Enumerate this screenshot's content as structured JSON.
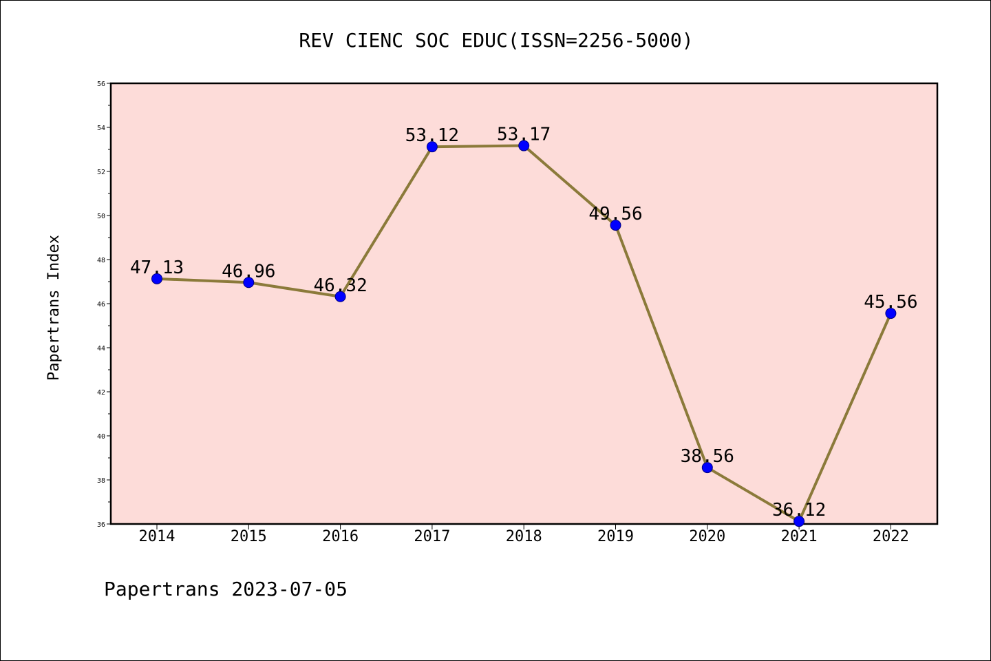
{
  "footer": "Papertrans 2023-07-05",
  "colors": {
    "plot_background": "#fddcd9",
    "line": "#8b7a3a",
    "marker": "#0000ff",
    "axes": "#000000"
  },
  "chart_data": {
    "type": "line",
    "title": "REV CIENC SOC EDUC(ISSN=2256-5000)",
    "xlabel": "",
    "ylabel": "Papertrans Index",
    "categories": [
      "2014",
      "2015",
      "2016",
      "2017",
      "2018",
      "2019",
      "2020",
      "2021",
      "2022"
    ],
    "series": [
      {
        "values": [
          47.13,
          46.96,
          46.32,
          53.12,
          53.17,
          49.56,
          38.56,
          36.12,
          45.56
        ],
        "labels": [
          "47.13",
          "46.96",
          "46.32",
          "53.12",
          "53.17",
          "49.56",
          "38.56",
          "36.12",
          "45.56"
        ]
      }
    ],
    "ylim": [
      36,
      56
    ],
    "yticks": [
      "36",
      "38",
      "40",
      "42",
      "44",
      "46",
      "48",
      "50",
      "52",
      "54",
      "56"
    ],
    "grid": false,
    "legend": "none"
  }
}
